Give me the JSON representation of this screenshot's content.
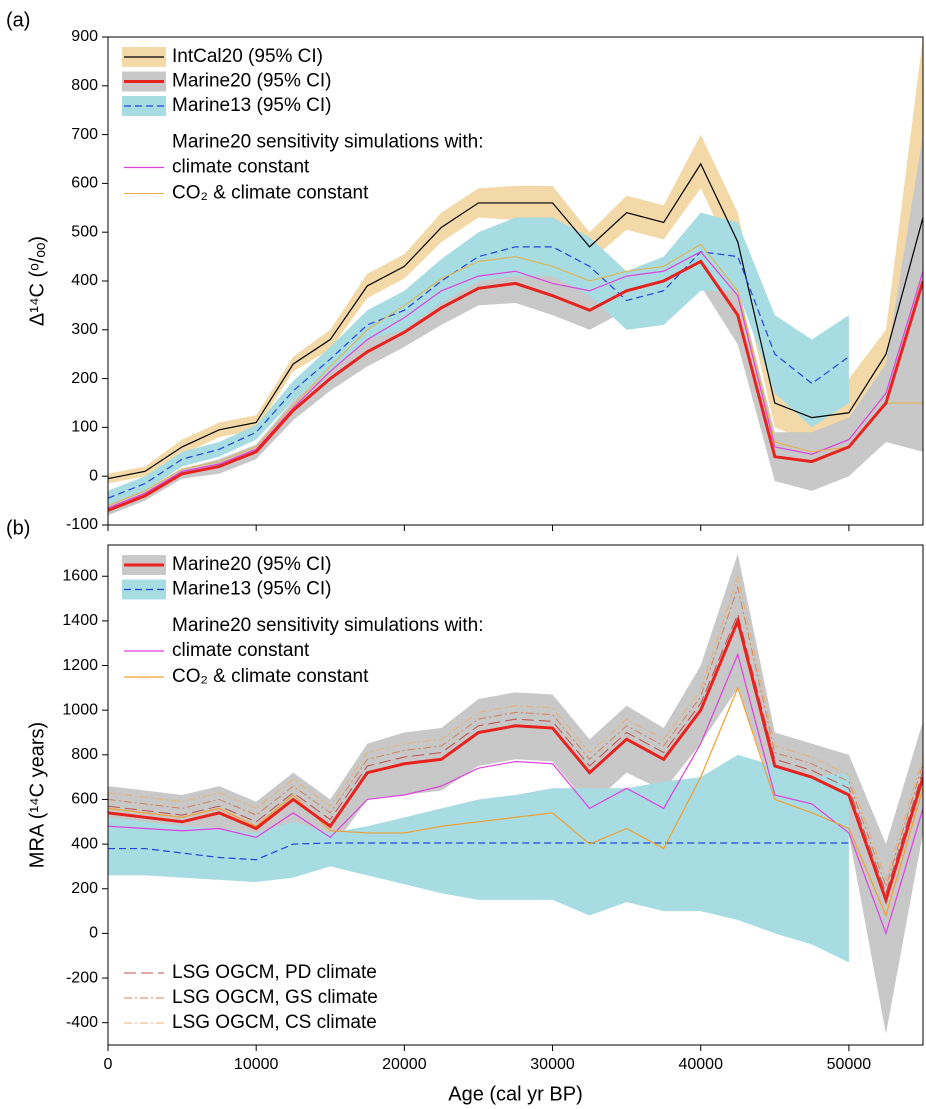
{
  "chart_data": [
    {
      "type": "line",
      "panel_label": "(a)",
      "ylabel": "Δ¹⁴C (ᵒ/ₒₒ)",
      "legend_title": "Marine20 sensitivity simulations with:",
      "xticklabels": false,
      "x": [
        0,
        2500,
        5000,
        7500,
        10000,
        12500,
        15000,
        17500,
        20000,
        22500,
        25000,
        27500,
        30000,
        32500,
        35000,
        37500,
        40000,
        42500,
        45000,
        47500,
        50000,
        52500,
        55000
      ],
      "xlim": [
        0,
        55000
      ],
      "xticks": [
        0,
        10000,
        20000,
        30000,
        40000,
        50000
      ],
      "ylim": [
        -100,
        900
      ],
      "yticks": [
        -100,
        0,
        100,
        200,
        300,
        400,
        500,
        600,
        700,
        800,
        900
      ],
      "series": [
        {
          "name": "IntCal20 (95% CI)",
          "color": "#000000",
          "width": 1.2,
          "band_color": "#f3d9a8",
          "legend": "upper left",
          "values": [
            -5,
            10,
            60,
            95,
            110,
            230,
            280,
            390,
            430,
            510,
            560,
            560,
            560,
            470,
            540,
            520,
            640,
            480,
            150,
            120,
            130,
            250,
            530
          ],
          "lower": [
            -15,
            0,
            45,
            80,
            95,
            215,
            260,
            365,
            405,
            480,
            530,
            525,
            525,
            440,
            505,
            485,
            590,
            430,
            100,
            70,
            70,
            200,
            150
          ],
          "upper": [
            5,
            20,
            75,
            110,
            125,
            245,
            300,
            415,
            455,
            540,
            590,
            595,
            595,
            500,
            575,
            555,
            700,
            540,
            210,
            180,
            200,
            300,
            900
          ]
        },
        {
          "name": "Marine20 (95% CI)",
          "color": "#e8231f",
          "width": 3,
          "band_color": "#c8c8c8",
          "legend": "upper left",
          "values": [
            -70,
            -40,
            5,
            20,
            50,
            135,
            200,
            255,
            295,
            345,
            385,
            395,
            370,
            340,
            380,
            400,
            440,
            330,
            40,
            30,
            60,
            150,
            400
          ],
          "lower": [
            -80,
            -50,
            -5,
            5,
            35,
            115,
            175,
            225,
            265,
            310,
            350,
            355,
            330,
            300,
            340,
            355,
            390,
            270,
            -10,
            -30,
            0,
            70,
            50
          ],
          "upper": [
            -60,
            -30,
            15,
            35,
            65,
            155,
            225,
            285,
            325,
            380,
            420,
            435,
            410,
            380,
            420,
            445,
            490,
            390,
            90,
            90,
            120,
            230,
            700
          ]
        },
        {
          "name": "Marine13 (95% CI)",
          "color": "#2244dd",
          "width": 1.2,
          "dash": "7 4",
          "band_color": "#a8dce3",
          "legend": "upper left",
          "values": [
            -45,
            -15,
            35,
            55,
            90,
            175,
            240,
            310,
            340,
            400,
            450,
            470,
            470,
            430,
            360,
            380,
            460,
            450,
            250,
            190,
            245,
            null,
            null
          ],
          "lower": [
            -60,
            -30,
            20,
            40,
            75,
            155,
            215,
            280,
            300,
            355,
            400,
            410,
            410,
            370,
            300,
            310,
            380,
            380,
            170,
            100,
            150,
            null,
            null
          ],
          "upper": [
            -30,
            0,
            50,
            70,
            105,
            195,
            265,
            340,
            380,
            445,
            500,
            530,
            530,
            490,
            420,
            450,
            540,
            520,
            330,
            280,
            330,
            null,
            null
          ]
        },
        {
          "name": "climate constant",
          "color": "#e040e0",
          "width": 1.2,
          "legend": "upper left",
          "values": [
            -65,
            -35,
            10,
            25,
            55,
            140,
            215,
            280,
            325,
            380,
            410,
            420,
            395,
            380,
            410,
            420,
            460,
            370,
            60,
            45,
            75,
            170,
            420
          ]
        },
        {
          "name": "CO₂ & climate constant",
          "color": "#e8b040",
          "width": 1,
          "legend": "upper left",
          "values": [
            -60,
            -30,
            15,
            30,
            60,
            145,
            225,
            300,
            350,
            405,
            440,
            450,
            430,
            400,
            420,
            430,
            475,
            380,
            70,
            50,
            60,
            150,
            150
          ]
        }
      ]
    },
    {
      "type": "line",
      "panel_label": "(b)",
      "ylabel": "MRA (¹⁴C years)",
      "xlabel": "Age (cal yr BP)",
      "legend_title": "Marine20 sensitivity simulations with:",
      "xticklabels": true,
      "x": [
        0,
        2500,
        5000,
        7500,
        10000,
        12500,
        15000,
        17500,
        20000,
        22500,
        25000,
        27500,
        30000,
        32500,
        35000,
        37500,
        40000,
        42500,
        45000,
        47500,
        50000,
        52500,
        55000
      ],
      "xlim": [
        0,
        55000
      ],
      "xticks": [
        0,
        10000,
        20000,
        30000,
        40000,
        50000
      ],
      "ylim": [
        -500,
        1740
      ],
      "yticks": [
        -400,
        -200,
        0,
        200,
        400,
        600,
        800,
        1000,
        1200,
        1400,
        1600
      ],
      "series": [
        {
          "name": "Marine20 (95% CI)",
          "color": "#e8231f",
          "width": 3,
          "band_color": "#c8c8c8",
          "legend": "upper left",
          "values": [
            540,
            520,
            500,
            540,
            470,
            600,
            480,
            720,
            760,
            780,
            900,
            930,
            920,
            720,
            870,
            780,
            1000,
            1400,
            750,
            700,
            620,
            150,
            700
          ],
          "lower": [
            420,
            400,
            380,
            420,
            350,
            480,
            370,
            600,
            620,
            640,
            750,
            780,
            770,
            570,
            720,
            640,
            850,
            1100,
            620,
            540,
            440,
            -450,
            450
          ],
          "upper": [
            660,
            640,
            620,
            660,
            590,
            720,
            600,
            850,
            900,
            920,
            1050,
            1080,
            1070,
            870,
            1020,
            920,
            1200,
            1700,
            900,
            850,
            800,
            400,
            950
          ]
        },
        {
          "name": "Marine13 (95% CI)",
          "color": "#2244dd",
          "width": 1.2,
          "dash": "7 4",
          "band_color": "#a8dce3",
          "legend": "upper left",
          "values": [
            380,
            380,
            360,
            340,
            330,
            400,
            405,
            405,
            405,
            405,
            405,
            405,
            405,
            405,
            405,
            405,
            405,
            405,
            405,
            405,
            405,
            null,
            null
          ],
          "lower": [
            260,
            260,
            250,
            240,
            230,
            250,
            300,
            260,
            220,
            180,
            150,
            150,
            150,
            80,
            140,
            100,
            100,
            60,
            0,
            -50,
            -130,
            null,
            null
          ],
          "upper": [
            520,
            500,
            480,
            470,
            450,
            500,
            450,
            480,
            520,
            560,
            600,
            620,
            650,
            650,
            650,
            680,
            700,
            800,
            750,
            700,
            720,
            null,
            null
          ]
        },
        {
          "name": "climate constant",
          "color": "#e040e0",
          "width": 1.2,
          "legend": "upper left",
          "values": [
            480,
            470,
            460,
            470,
            430,
            540,
            430,
            600,
            620,
            660,
            740,
            770,
            760,
            560,
            650,
            560,
            850,
            1250,
            620,
            580,
            450,
            0,
            560
          ]
        },
        {
          "name": "CO₂ & climate constant",
          "color": "#f0a030",
          "width": 1.2,
          "legend": "upper left",
          "values": [
            560,
            540,
            520,
            560,
            480,
            620,
            460,
            450,
            450,
            480,
            500,
            520,
            540,
            400,
            470,
            380,
            700,
            1100,
            600,
            540,
            470,
            80,
            650
          ]
        },
        {
          "name": "LSG OGCM, PD climate",
          "color": "#c0504d",
          "width": 1,
          "dash": "12 5",
          "legend": "lower left",
          "values": [
            570,
            550,
            530,
            570,
            500,
            630,
            510,
            750,
            790,
            810,
            930,
            960,
            950,
            750,
            900,
            810,
            1030,
            1430,
            780,
            730,
            650,
            180,
            730
          ]
        },
        {
          "name": "LSG OGCM, GS climate",
          "color": "#d2825a",
          "width": 1,
          "dash": "8 3 2 3",
          "legend": "lower left",
          "values": [
            600,
            580,
            560,
            600,
            530,
            660,
            540,
            780,
            820,
            840,
            960,
            990,
            980,
            780,
            930,
            840,
            1060,
            1550,
            810,
            760,
            680,
            210,
            760
          ]
        },
        {
          "name": "LSG OGCM, CS climate",
          "color": "#e8b070",
          "width": 1,
          "dash": "8 3 2 3",
          "legend": "lower left",
          "values": [
            630,
            610,
            590,
            630,
            560,
            690,
            570,
            810,
            850,
            870,
            990,
            1020,
            1010,
            810,
            960,
            870,
            1090,
            1600,
            840,
            790,
            710,
            240,
            790
          ]
        }
      ]
    }
  ]
}
